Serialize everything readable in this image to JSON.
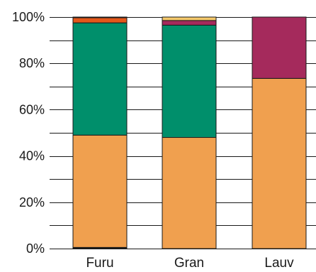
{
  "chart_data": {
    "type": "bar",
    "stacked": true,
    "percent": true,
    "categories": [
      "Furu",
      "Gran",
      "Lauv"
    ],
    "series": [
      {
        "color": "#1a1a1a",
        "values": [
          0.5,
          0,
          0
        ]
      },
      {
        "color": "#f0a04f",
        "values": [
          48.5,
          48,
          73.5
        ]
      },
      {
        "color": "#008f6b",
        "values": [
          48.5,
          48.5,
          0
        ]
      },
      {
        "color": "#e4571b",
        "values": [
          2.2,
          0,
          0
        ]
      },
      {
        "color": "#a52a5c",
        "values": [
          0,
          2,
          26.5
        ]
      },
      {
        "color": "#f5c86a",
        "values": [
          0.3,
          1.5,
          0
        ]
      }
    ],
    "yticks": [
      "0%",
      "20%",
      "40%",
      "60%",
      "80%",
      "100%"
    ],
    "ylim": [
      0,
      100
    ],
    "grid": true,
    "xlabel": "",
    "ylabel": ""
  }
}
